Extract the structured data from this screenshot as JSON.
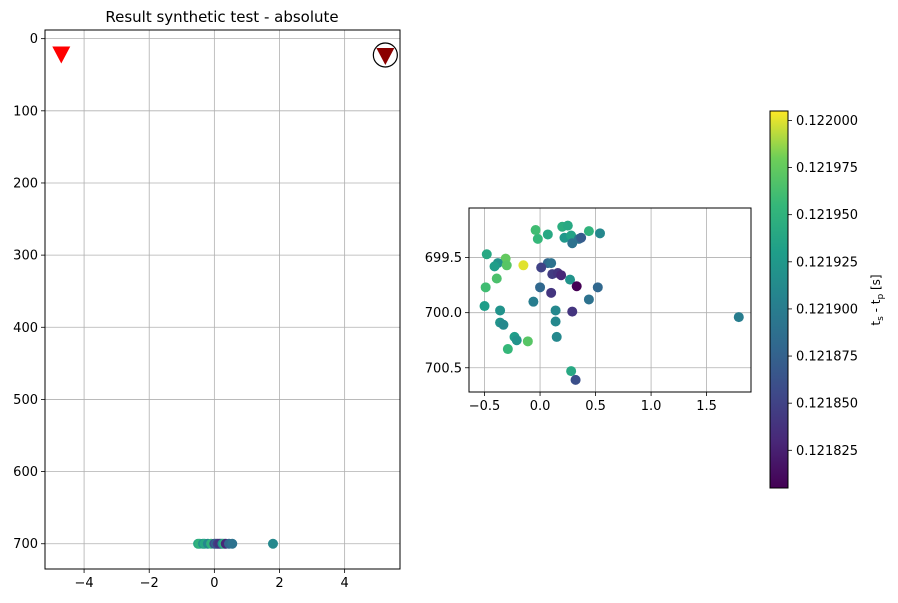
{
  "chart_data": [
    {
      "type": "scatter",
      "title": "Result synthetic test - absolute",
      "xlim": [
        -5.2,
        5.7
      ],
      "ylim": [
        735,
        -12
      ],
      "y_inverted": true,
      "grid": true,
      "xticks": [
        -4,
        -2,
        0,
        2,
        4
      ],
      "yticks": [
        0,
        100,
        200,
        300,
        400,
        500,
        600,
        700
      ],
      "stations": [
        {
          "x": -4.7,
          "y": 22,
          "color": "#ff0000",
          "marker": "triangle-down",
          "circled": false
        },
        {
          "x": 5.25,
          "y": 24,
          "color": "#8b0000",
          "marker": "triangle-down",
          "circled": true
        }
      ],
      "points": [
        {
          "x": -0.5,
          "y": 700,
          "c": 0.12194
        },
        {
          "x": -0.45,
          "y": 700,
          "c": 0.12195
        },
        {
          "x": -0.35,
          "y": 700,
          "c": 0.12192
        },
        {
          "x": -0.3,
          "y": 700,
          "c": 0.12194
        },
        {
          "x": -0.2,
          "y": 700,
          "c": 0.12191
        },
        {
          "x": -0.1,
          "y": 700,
          "c": 0.12195
        },
        {
          "x": 0.0,
          "y": 700,
          "c": 0.12186
        },
        {
          "x": 0.05,
          "y": 700,
          "c": 0.12188
        },
        {
          "x": 0.1,
          "y": 700,
          "c": 0.12185
        },
        {
          "x": 0.15,
          "y": 700,
          "c": 0.12184
        },
        {
          "x": 0.2,
          "y": 700,
          "c": 0.12184
        },
        {
          "x": 0.25,
          "y": 700,
          "c": 0.12192
        },
        {
          "x": 0.3,
          "y": 700,
          "c": 0.12195
        },
        {
          "x": 0.35,
          "y": 700,
          "c": 0.12183
        },
        {
          "x": 0.45,
          "y": 700,
          "c": 0.12188
        },
        {
          "x": 0.55,
          "y": 700,
          "c": 0.12189
        },
        {
          "x": 1.8,
          "y": 700,
          "c": 0.12191
        }
      ]
    },
    {
      "type": "scatter",
      "xlim": [
        -0.64,
        1.9
      ],
      "ylim": [
        700.72,
        699.05
      ],
      "y_inverted": true,
      "grid": true,
      "xticks": [
        -0.5,
        0.0,
        0.5,
        1.0,
        1.5
      ],
      "xticklabels": [
        "−0.5",
        "0.0",
        "0.5",
        "1.0",
        "1.5"
      ],
      "yticks": [
        699.5,
        700.0,
        700.5
      ],
      "yticklabels": [
        "699.5",
        "700.0",
        "700.5"
      ],
      "points": [
        {
          "x": -0.48,
          "y": 699.47,
          "c": 0.12194
        },
        {
          "x": -0.31,
          "y": 699.51,
          "c": 0.121975
        },
        {
          "x": -0.38,
          "y": 699.55,
          "c": 0.12192
        },
        {
          "x": -0.41,
          "y": 699.58,
          "c": 0.12193
        },
        {
          "x": -0.3,
          "y": 699.57,
          "c": 0.12197
        },
        {
          "x": -0.15,
          "y": 699.57,
          "c": 0.122
        },
        {
          "x": -0.39,
          "y": 699.69,
          "c": 0.121965
        },
        {
          "x": -0.49,
          "y": 699.77,
          "c": 0.12196
        },
        {
          "x": -0.02,
          "y": 699.33,
          "c": 0.121955
        },
        {
          "x": -0.04,
          "y": 699.25,
          "c": 0.12196
        },
        {
          "x": 0.07,
          "y": 699.29,
          "c": 0.12194
        },
        {
          "x": 0.2,
          "y": 699.22,
          "c": 0.121945
        },
        {
          "x": 0.25,
          "y": 699.21,
          "c": 0.12194
        },
        {
          "x": 0.22,
          "y": 699.32,
          "c": 0.121925
        },
        {
          "x": 0.28,
          "y": 699.3,
          "c": 0.121935
        },
        {
          "x": 0.29,
          "y": 699.37,
          "c": 0.12189
        },
        {
          "x": 0.35,
          "y": 699.33,
          "c": 0.12189
        },
        {
          "x": 0.37,
          "y": 699.32,
          "c": 0.12187
        },
        {
          "x": 0.44,
          "y": 699.26,
          "c": 0.12195
        },
        {
          "x": 0.54,
          "y": 699.28,
          "c": 0.12191
        },
        {
          "x": 0.07,
          "y": 699.55,
          "c": 0.12188
        },
        {
          "x": 0.1,
          "y": 699.55,
          "c": 0.12189
        },
        {
          "x": 0.01,
          "y": 699.59,
          "c": 0.12185
        },
        {
          "x": 0.11,
          "y": 699.65,
          "c": 0.121845
        },
        {
          "x": 0.16,
          "y": 699.64,
          "c": 0.12184
        },
        {
          "x": 0.19,
          "y": 699.66,
          "c": 0.12183
        },
        {
          "x": 0.27,
          "y": 699.7,
          "c": 0.12192
        },
        {
          "x": 0.33,
          "y": 699.76,
          "c": 0.1218
        },
        {
          "x": 0.0,
          "y": 699.77,
          "c": 0.12188
        },
        {
          "x": 0.1,
          "y": 699.82,
          "c": 0.12184
        },
        {
          "x": 0.52,
          "y": 699.77,
          "c": 0.12188
        },
        {
          "x": -0.06,
          "y": 699.9,
          "c": 0.1219
        },
        {
          "x": -0.5,
          "y": 699.94,
          "c": 0.12193
        },
        {
          "x": -0.36,
          "y": 699.98,
          "c": 0.12192
        },
        {
          "x": 0.14,
          "y": 699.98,
          "c": 0.12191
        },
        {
          "x": 0.29,
          "y": 699.99,
          "c": 0.12184
        },
        {
          "x": 0.44,
          "y": 699.88,
          "c": 0.12189
        },
        {
          "x": -0.36,
          "y": 700.09,
          "c": 0.12192
        },
        {
          "x": -0.33,
          "y": 700.11,
          "c": 0.12191
        },
        {
          "x": 0.14,
          "y": 700.08,
          "c": 0.12191
        },
        {
          "x": -0.23,
          "y": 700.22,
          "c": 0.12193
        },
        {
          "x": -0.21,
          "y": 700.25,
          "c": 0.12192
        },
        {
          "x": 0.15,
          "y": 700.22,
          "c": 0.12191
        },
        {
          "x": -0.11,
          "y": 700.26,
          "c": 0.12197
        },
        {
          "x": -0.29,
          "y": 700.33,
          "c": 0.121955
        },
        {
          "x": 0.28,
          "y": 700.53,
          "c": 0.12194
        },
        {
          "x": 0.32,
          "y": 700.61,
          "c": 0.12186
        },
        {
          "x": 1.79,
          "y": 700.04,
          "c": 0.1219
        }
      ]
    }
  ],
  "colorbar": {
    "cmap": "viridis",
    "vmin": 0.121805,
    "vmax": 0.122005,
    "ticks": [
      0.121825,
      0.12185,
      0.121875,
      0.1219,
      0.121925,
      0.12195,
      0.121975,
      0.122
    ],
    "ticklabels": [
      "0.121825",
      "0.121850",
      "0.121875",
      "0.121900",
      "0.121925",
      "0.121950",
      "0.121975",
      "0.122000"
    ],
    "label_main": "t",
    "label_sub1": "s",
    "label_mid": " - t",
    "label_sub2": "p",
    "label_unit": " [s]"
  }
}
